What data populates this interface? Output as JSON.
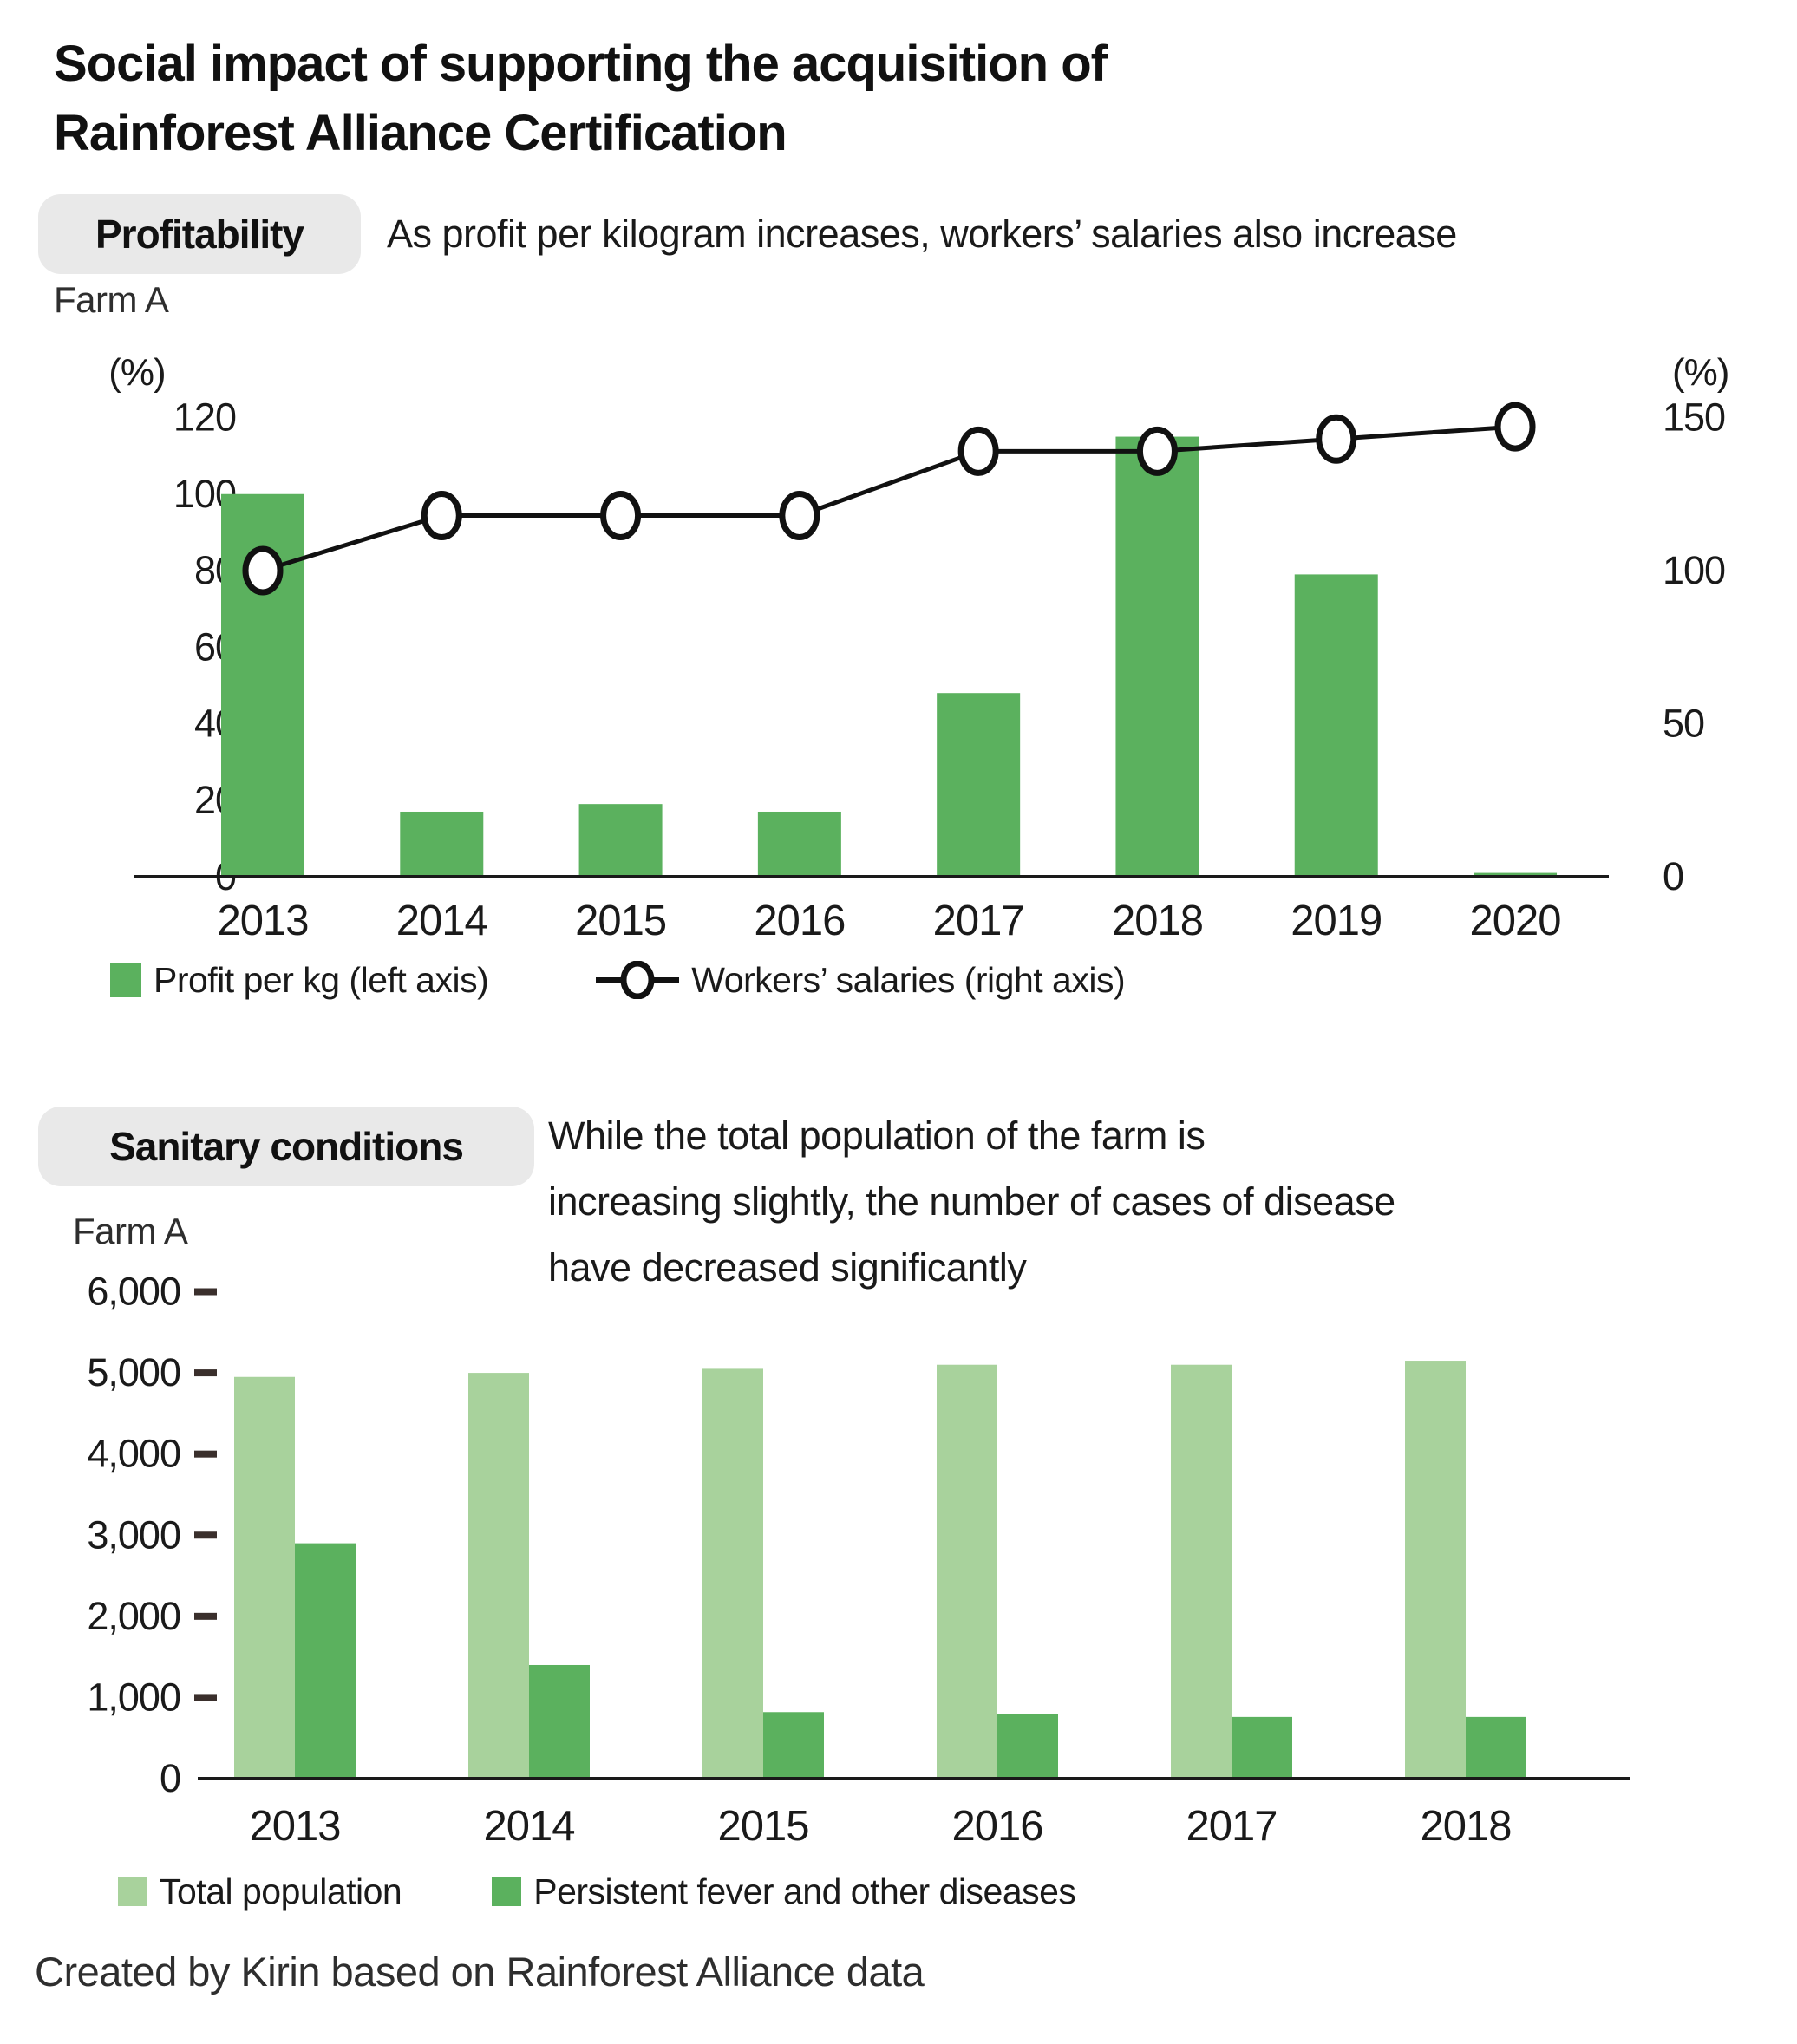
{
  "page": {
    "title_lines": [
      "Social impact of supporting the acquisition of",
      "Rainforest Alliance Certification"
    ],
    "footer": "Created by Kirin based on Rainforest Alliance data"
  },
  "colors": {
    "bar_green": "#5bb15e",
    "light_green": "#a8d29c",
    "line_black": "#111111",
    "badge_bg": "#e9e9e9",
    "axis": "#1a1a1a",
    "tick_dash": "#3a2f2c",
    "text": "#1a1a1a"
  },
  "profitability": {
    "badge": "Profitability",
    "description": "As profit per kilogram increases, workers’ salaries also increase",
    "farm_label": "Farm A",
    "legend": {
      "bar_label": "Profit per kg (left axis)",
      "line_label": "Workers’ salaries (right axis)"
    }
  },
  "sanitary": {
    "badge": "Sanitary conditions",
    "description_lines": [
      "While the total population of the farm is",
      "increasing slightly, the number of cases of disease",
      "have decreased significantly"
    ],
    "farm_label": "Farm A",
    "legend": {
      "light_label": "Total population",
      "dark_label": "Persistent fever and other diseases"
    }
  },
  "chart_data": [
    {
      "id": "profitability",
      "type": "bar+line",
      "title": "Profitability",
      "categories": [
        "2013",
        "2014",
        "2015",
        "2016",
        "2017",
        "2018",
        "2019",
        "2020"
      ],
      "series": [
        {
          "name": "Profit per kg (left axis)",
          "type": "bar",
          "axis": "left",
          "color": "#5bb15e",
          "values": [
            100,
            17,
            19,
            17,
            48,
            115,
            79,
            1
          ]
        },
        {
          "name": "Workers’ salaries (right axis)",
          "type": "line",
          "axis": "right",
          "color": "#111111",
          "marker": "open-circle",
          "values": [
            100,
            118,
            118,
            118,
            139,
            139,
            143,
            147
          ]
        }
      ],
      "left_axis": {
        "unit": "(%)",
        "range": [
          0,
          120
        ],
        "ticks": [
          0,
          20,
          40,
          60,
          80,
          100,
          120
        ]
      },
      "right_axis": {
        "unit": "(%)",
        "range": [
          0,
          150
        ],
        "ticks": [
          0,
          50,
          100,
          150
        ]
      },
      "grid": false,
      "legend_position": "bottom"
    },
    {
      "id": "sanitary",
      "type": "bar",
      "title": "Sanitary conditions",
      "categories": [
        "2013",
        "2014",
        "2015",
        "2016",
        "2017",
        "2018"
      ],
      "series": [
        {
          "name": "Total population",
          "color": "#a8d29c",
          "values": [
            4950,
            5000,
            5050,
            5100,
            5100,
            5150
          ]
        },
        {
          "name": "Persistent fever and other diseases",
          "color": "#5bb15e",
          "values": [
            2900,
            1400,
            820,
            800,
            760,
            760
          ]
        }
      ],
      "y_axis": {
        "range": [
          0,
          6000
        ],
        "ticks": [
          0,
          1000,
          2000,
          3000,
          4000,
          5000,
          6000
        ],
        "tick_labels": [
          "0",
          "1,000",
          "2,000",
          "3,000",
          "4,000",
          "5,000",
          "6,000"
        ]
      },
      "grid": false,
      "legend_position": "bottom"
    }
  ]
}
